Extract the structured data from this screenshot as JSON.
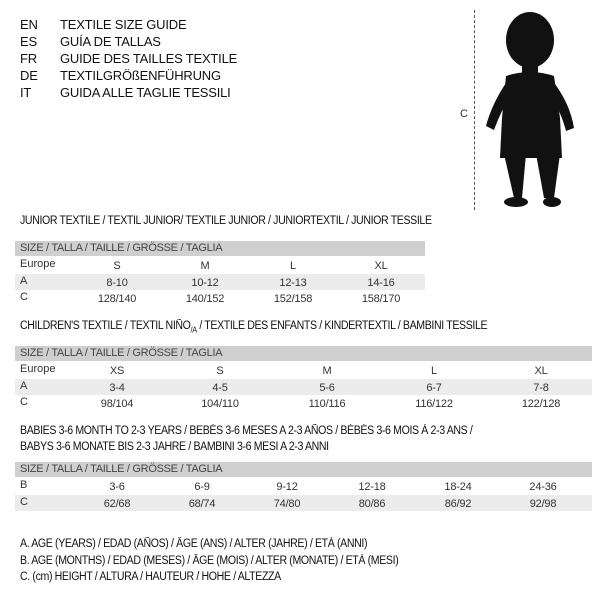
{
  "languages": [
    {
      "code": "EN",
      "text": "TEXTILE SIZE GUIDE"
    },
    {
      "code": "ES",
      "text": "GUÍA DE TALLAS"
    },
    {
      "code": "FR",
      "text": "GUIDE DES TAILLES TEXTILE"
    },
    {
      "code": "DE",
      "text": "TEXTILGRÖßENFÜHRUNG"
    },
    {
      "code": "IT",
      "text": "GUIDA ALLE TAGLIE TESSILI"
    }
  ],
  "figure": {
    "measure_label": "C"
  },
  "junior": {
    "title": "JUNIOR TEXTILE / TEXTIL JUNIOR/ TEXTILE JUNIOR / JUNIORTEXTIL / JUNIOR TESSILE",
    "header": "SIZE / TALLA / TAILLE / GRÖSSE / TAGLIA",
    "rows": [
      {
        "label": "Europe",
        "values": [
          "S",
          "M",
          "L",
          "XL"
        ]
      },
      {
        "label": "A",
        "values": [
          "8-10",
          "10-12",
          "12-13",
          "14-16"
        ]
      },
      {
        "label": "C",
        "values": [
          "128/140",
          "140/152",
          "152/158",
          "158/170"
        ]
      }
    ]
  },
  "children": {
    "title": "CHILDREN'S TEXTILE / TEXTIL NIÑO/A / TEXTILE DES ENFANTS / KINDERTEXTIL / BAMBINI TESSILE",
    "header": "SIZE / TALLA / TAILLE / GRÖSSE / TAGLIA",
    "rows": [
      {
        "label": "Europe",
        "values": [
          "XS",
          "S",
          "M",
          "L",
          "XL"
        ]
      },
      {
        "label": "A",
        "values": [
          "3-4",
          "4-5",
          "5-6",
          "6-7",
          "7-8"
        ]
      },
      {
        "label": "C",
        "values": [
          "98/104",
          "104/110",
          "110/116",
          "116/122",
          "122/128"
        ]
      }
    ]
  },
  "babies": {
    "title_line1": "BABIES 3-6 MONTH TO 2-3 YEARS / BEBÉS 3-6 MESES A 2-3 AÑOS / BÉBÉS 3-6 MOIS À 2-3 ANS /",
    "title_line2": "BABYS 3-6 MONATE BIS 2-3 JAHRE / BAMBINI 3-6 MESI A 2-3 ANNI",
    "header": "SIZE / TALLA / TAILLE / GRÖSSE / TAGLIA",
    "rows": [
      {
        "label": "B",
        "values": [
          "3-6",
          "6-9",
          "9-12",
          "12-18",
          "18-24",
          "24-36"
        ]
      },
      {
        "label": "C",
        "values": [
          "62/68",
          "68/74",
          "74/80",
          "80/86",
          "86/92",
          "92/98"
        ]
      }
    ]
  },
  "legend": [
    "A. AGE (YEARS) / EDAD (AÑOS) / ÂGE (ANS) / ALTER (JAHRE) / ETÀ (ANNI)",
    "B. AGE (MONTHS) / EDAD (MESES) / ÂGE (MOIS) / ALTER (MONATE) / ETÀ (MESI)",
    "C. (cm) HEIGHT / ALTURA / HAUTEUR / HÖHE / ALTEZZA"
  ]
}
